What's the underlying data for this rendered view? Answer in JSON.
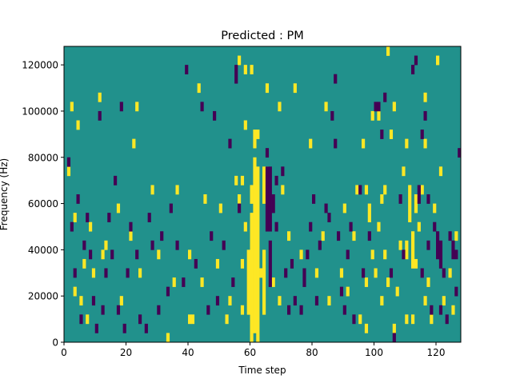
{
  "chart_data": {
    "type": "heatmap",
    "title": "Predicted : PM",
    "xlabel": "Time step",
    "ylabel": "Frequency (Hz)",
    "xlim": [
      0,
      128
    ],
    "ylim": [
      0,
      128000
    ],
    "x_ticks": [
      0,
      20,
      40,
      60,
      80,
      100,
      120
    ],
    "y_ticks": [
      0,
      20000,
      40000,
      60000,
      80000,
      100000,
      120000
    ],
    "x_tick_labels": [
      "0",
      "20",
      "40",
      "60",
      "80",
      "100",
      "120"
    ],
    "y_tick_labels": [
      "0",
      "20000",
      "40000",
      "60000",
      "80000",
      "100000",
      "120000"
    ],
    "colormap": {
      "background": "#21918c",
      "low": "#440154",
      "high": "#fde725"
    },
    "grid": false,
    "bin_height_hz": 4000,
    "yellow_segments": [
      [
        60,
        61,
        0,
        56000
      ],
      [
        60,
        61,
        60000,
        68000
      ],
      [
        61,
        62,
        4000,
        80000
      ],
      [
        62,
        63,
        0,
        76000
      ],
      [
        61,
        62,
        84000,
        92000
      ],
      [
        59,
        60,
        12000,
        40000
      ],
      [
        57,
        58,
        12000,
        16000
      ],
      [
        57,
        58,
        32000,
        36000
      ],
      [
        57,
        58,
        68000,
        72000
      ],
      [
        58,
        59,
        48000,
        52000
      ],
      [
        58,
        59,
        92000,
        96000
      ],
      [
        64,
        65,
        12000,
        40000
      ],
      [
        64,
        65,
        60000,
        76000
      ],
      [
        63,
        64,
        28000,
        32000
      ],
      [
        65,
        66,
        72000,
        76000
      ],
      [
        55,
        56,
        68000,
        72000
      ],
      [
        56,
        57,
        60000,
        64000
      ],
      [
        110,
        111,
        36000,
        44000
      ],
      [
        111,
        112,
        52000,
        68000
      ],
      [
        112,
        113,
        32000,
        48000
      ],
      [
        110,
        111,
        8000,
        12000
      ],
      [
        112,
        113,
        8000,
        12000
      ],
      [
        113,
        114,
        56000,
        64000
      ],
      [
        98,
        99,
        52000,
        60000
      ],
      [
        97,
        98,
        64000,
        68000
      ],
      [
        99,
        100,
        36000,
        40000
      ],
      [
        97,
        98,
        24000,
        28000
      ],
      [
        103,
        104,
        36000,
        40000
      ],
      [
        101,
        102,
        96000,
        100000
      ],
      [
        99,
        100,
        96000,
        100000
      ],
      [
        104,
        105,
        24000,
        28000
      ],
      [
        102,
        103,
        60000,
        64000
      ],
      [
        103,
        104,
        64000,
        68000
      ],
      [
        106,
        107,
        4000,
        8000
      ],
      [
        110,
        111,
        84000,
        88000
      ],
      [
        116,
        117,
        16000,
        20000
      ],
      [
        116,
        117,
        84000,
        88000
      ],
      [
        41,
        42,
        8000,
        12000
      ],
      [
        40,
        41,
        8000,
        12000
      ],
      [
        45,
        46,
        60000,
        64000
      ],
      [
        44,
        45,
        24000,
        28000
      ],
      [
        43,
        44,
        108000,
        112000
      ],
      [
        53,
        54,
        16000,
        20000
      ],
      [
        52,
        53,
        8000,
        12000
      ],
      [
        28,
        29,
        64000,
        68000
      ],
      [
        30,
        31,
        36000,
        40000
      ],
      [
        24,
        25,
        28000,
        32000
      ],
      [
        22,
        23,
        84000,
        88000
      ],
      [
        23,
        24,
        100000,
        104000
      ],
      [
        21,
        22,
        44000,
        48000
      ],
      [
        18,
        19,
        16000,
        20000
      ],
      [
        17,
        18,
        56000,
        60000
      ],
      [
        13,
        14,
        40000,
        44000
      ],
      [
        12,
        13,
        36000,
        40000
      ],
      [
        11,
        12,
        104000,
        108000
      ],
      [
        9,
        10,
        28000,
        32000
      ],
      [
        8,
        9,
        48000,
        52000
      ],
      [
        7,
        8,
        8000,
        12000
      ],
      [
        6,
        7,
        32000,
        36000
      ],
      [
        5,
        6,
        16000,
        20000
      ],
      [
        4,
        5,
        92000,
        96000
      ],
      [
        3,
        4,
        52000,
        56000
      ],
      [
        2,
        3,
        100000,
        104000
      ],
      [
        1,
        2,
        72000,
        76000
      ],
      [
        3,
        4,
        20000,
        24000
      ],
      [
        33,
        34,
        0,
        4000
      ],
      [
        35,
        36,
        24000,
        28000
      ],
      [
        36,
        37,
        64000,
        68000
      ],
      [
        40,
        41,
        36000,
        40000
      ],
      [
        49,
        50,
        32000,
        36000
      ],
      [
        50,
        51,
        56000,
        60000
      ],
      [
        67,
        68,
        24000,
        28000
      ],
      [
        69,
        70,
        16000,
        20000
      ],
      [
        70,
        71,
        64000,
        68000
      ],
      [
        69,
        70,
        100000,
        104000
      ],
      [
        72,
        73,
        44000,
        48000
      ],
      [
        74,
        75,
        108000,
        112000
      ],
      [
        76,
        77,
        36000,
        40000
      ],
      [
        79,
        80,
        84000,
        88000
      ],
      [
        81,
        82,
        28000,
        32000
      ],
      [
        83,
        84,
        44000,
        48000
      ],
      [
        84,
        85,
        100000,
        104000
      ],
      [
        85,
        86,
        16000,
        20000
      ],
      [
        89,
        90,
        28000,
        32000
      ],
      [
        90,
        91,
        56000,
        60000
      ],
      [
        91,
        92,
        20000,
        24000
      ],
      [
        93,
        94,
        44000,
        48000
      ],
      [
        94,
        95,
        64000,
        68000
      ],
      [
        95,
        96,
        8000,
        12000
      ],
      [
        96,
        97,
        84000,
        88000
      ],
      [
        97,
        98,
        4000,
        8000
      ],
      [
        100,
        101,
        28000,
        32000
      ],
      [
        101,
        102,
        48000,
        52000
      ],
      [
        102,
        103,
        16000,
        20000
      ],
      [
        105,
        106,
        88000,
        92000
      ],
      [
        106,
        107,
        100000,
        104000
      ],
      [
        107,
        108,
        20000,
        24000
      ],
      [
        108,
        109,
        40000,
        44000
      ],
      [
        109,
        110,
        72000,
        76000
      ],
      [
        113,
        114,
        32000,
        36000
      ],
      [
        114,
        115,
        48000,
        52000
      ],
      [
        115,
        116,
        64000,
        68000
      ],
      [
        117,
        118,
        24000,
        28000
      ],
      [
        118,
        119,
        8000,
        12000
      ],
      [
        119,
        120,
        56000,
        60000
      ],
      [
        120,
        121,
        40000,
        44000
      ],
      [
        121,
        122,
        72000,
        76000
      ],
      [
        122,
        123,
        16000,
        20000
      ],
      [
        124,
        125,
        28000,
        32000
      ],
      [
        125,
        126,
        12000,
        16000
      ],
      [
        126,
        127,
        44000,
        48000
      ],
      [
        120,
        121,
        120000,
        124000
      ],
      [
        116,
        117,
        104000,
        108000
      ],
      [
        104,
        105,
        124000,
        128000
      ],
      [
        56,
        57,
        120000,
        124000
      ],
      [
        58,
        59,
        116000,
        120000
      ],
      [
        60,
        61,
        116000,
        120000
      ],
      [
        65,
        66,
        108000,
        112000
      ],
      [
        62,
        63,
        88000,
        92000
      ]
    ],
    "purple_segments": [
      [
        65,
        66,
        48000,
        76000
      ],
      [
        66,
        67,
        48000,
        72000
      ],
      [
        67,
        68,
        56000,
        64000
      ],
      [
        66,
        67,
        24000,
        44000
      ],
      [
        65,
        66,
        80000,
        84000
      ],
      [
        66,
        67,
        72000,
        76000
      ],
      [
        68,
        69,
        48000,
        52000
      ],
      [
        70,
        71,
        72000,
        76000
      ],
      [
        72,
        73,
        12000,
        16000
      ],
      [
        71,
        72,
        28000,
        32000
      ],
      [
        73,
        74,
        32000,
        36000
      ],
      [
        74,
        75,
        16000,
        20000
      ],
      [
        76,
        77,
        12000,
        16000
      ],
      [
        77,
        78,
        24000,
        28000
      ],
      [
        78,
        79,
        36000,
        40000
      ],
      [
        79,
        80,
        48000,
        52000
      ],
      [
        80,
        81,
        60000,
        64000
      ],
      [
        81,
        82,
        16000,
        20000
      ],
      [
        82,
        83,
        40000,
        44000
      ],
      [
        84,
        85,
        56000,
        60000
      ],
      [
        87,
        88,
        84000,
        88000
      ],
      [
        88,
        89,
        44000,
        48000
      ],
      [
        89,
        90,
        20000,
        24000
      ],
      [
        90,
        91,
        12000,
        16000
      ],
      [
        91,
        92,
        36000,
        40000
      ],
      [
        92,
        93,
        48000,
        52000
      ],
      [
        93,
        94,
        8000,
        12000
      ],
      [
        95,
        96,
        64000,
        68000
      ],
      [
        96,
        97,
        28000,
        32000
      ],
      [
        98,
        99,
        44000,
        48000
      ],
      [
        100,
        101,
        100000,
        104000
      ],
      [
        101,
        102,
        100000,
        104000
      ],
      [
        102,
        103,
        88000,
        92000
      ],
      [
        103,
        104,
        104000,
        108000
      ],
      [
        105,
        106,
        28000,
        32000
      ],
      [
        106,
        107,
        0,
        4000
      ],
      [
        108,
        109,
        60000,
        64000
      ],
      [
        109,
        110,
        36000,
        40000
      ],
      [
        114,
        115,
        60000,
        68000
      ],
      [
        115,
        116,
        28000,
        32000
      ],
      [
        116,
        117,
        96000,
        100000
      ],
      [
        117,
        118,
        60000,
        64000
      ],
      [
        117,
        118,
        40000,
        44000
      ],
      [
        118,
        119,
        12000,
        16000
      ],
      [
        119,
        120,
        48000,
        52000
      ],
      [
        120,
        121,
        36000,
        48000
      ],
      [
        121,
        122,
        32000,
        44000
      ],
      [
        121,
        122,
        12000,
        16000
      ],
      [
        122,
        123,
        28000,
        32000
      ],
      [
        123,
        124,
        8000,
        12000
      ],
      [
        124,
        125,
        44000,
        48000
      ],
      [
        125,
        126,
        36000,
        44000
      ],
      [
        126,
        127,
        20000,
        24000
      ],
      [
        127,
        128,
        80000,
        84000
      ],
      [
        126,
        127,
        36000,
        40000
      ],
      [
        112,
        113,
        116000,
        120000
      ],
      [
        113,
        114,
        120000,
        124000
      ],
      [
        115,
        116,
        88000,
        92000
      ],
      [
        1,
        2,
        76000,
        80000
      ],
      [
        2,
        3,
        48000,
        52000
      ],
      [
        3,
        4,
        28000,
        32000
      ],
      [
        4,
        5,
        60000,
        64000
      ],
      [
        5,
        6,
        8000,
        12000
      ],
      [
        6,
        7,
        40000,
        44000
      ],
      [
        7,
        8,
        52000,
        56000
      ],
      [
        8,
        9,
        36000,
        40000
      ],
      [
        9,
        10,
        16000,
        20000
      ],
      [
        10,
        11,
        4000,
        8000
      ],
      [
        11,
        12,
        96000,
        100000
      ],
      [
        12,
        13,
        12000,
        16000
      ],
      [
        13,
        14,
        28000,
        32000
      ],
      [
        14,
        15,
        52000,
        56000
      ],
      [
        15,
        16,
        36000,
        40000
      ],
      [
        16,
        17,
        68000,
        72000
      ],
      [
        17,
        18,
        12000,
        16000
      ],
      [
        18,
        19,
        100000,
        104000
      ],
      [
        19,
        20,
        4000,
        8000
      ],
      [
        20,
        21,
        28000,
        32000
      ],
      [
        21,
        22,
        48000,
        52000
      ],
      [
        23,
        24,
        36000,
        40000
      ],
      [
        24,
        25,
        8000,
        12000
      ],
      [
        26,
        27,
        4000,
        8000
      ],
      [
        27,
        28,
        52000,
        56000
      ],
      [
        28,
        29,
        40000,
        44000
      ],
      [
        30,
        31,
        12000,
        16000
      ],
      [
        31,
        32,
        44000,
        48000
      ],
      [
        33,
        34,
        20000,
        24000
      ],
      [
        34,
        35,
        56000,
        60000
      ],
      [
        36,
        37,
        40000,
        44000
      ],
      [
        38,
        39,
        24000,
        28000
      ],
      [
        39,
        40,
        116000,
        120000
      ],
      [
        42,
        43,
        32000,
        36000
      ],
      [
        44,
        45,
        100000,
        104000
      ],
      [
        46,
        47,
        12000,
        16000
      ],
      [
        47,
        48,
        44000,
        48000
      ],
      [
        48,
        49,
        96000,
        100000
      ],
      [
        49,
        50,
        16000,
        20000
      ],
      [
        51,
        52,
        40000,
        44000
      ],
      [
        53,
        54,
        84000,
        88000
      ],
      [
        54,
        55,
        24000,
        28000
      ],
      [
        55,
        56,
        112000,
        120000
      ],
      [
        56,
        57,
        56000,
        60000
      ],
      [
        68,
        69,
        68000,
        72000
      ],
      [
        86,
        87,
        96000,
        100000
      ],
      [
        87,
        88,
        112000,
        116000
      ],
      [
        77,
        78,
        28000,
        32000
      ],
      [
        85,
        86,
        52000,
        56000
      ]
    ]
  }
}
